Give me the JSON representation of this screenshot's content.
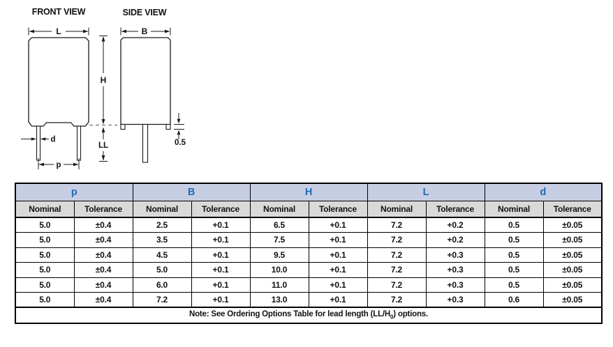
{
  "colors": {
    "group_header_bg": "#c7cee3",
    "sub_header_bg": "#d9d9d9",
    "group_header_text": "#1e6cb5",
    "line_color": "#1a1a1a"
  },
  "drawing": {
    "front_view_title": "FRONT VIEW",
    "side_view_title": "SIDE VIEW",
    "dims": {
      "L": "L",
      "H": "H",
      "LL": "LL",
      "d": "d",
      "p": "p",
      "B": "B",
      "foot_height": "0.5"
    }
  },
  "table": {
    "groups": [
      "p",
      "B",
      "H",
      "L",
      "d"
    ],
    "sub_headers": [
      "Nominal",
      "Tolerance"
    ],
    "rows": [
      [
        "5.0",
        "±0.4",
        "2.5",
        "+0.1",
        "6.5",
        "+0.1",
        "7.2",
        "+0.2",
        "0.5",
        "±0.05"
      ],
      [
        "5.0",
        "±0.4",
        "3.5",
        "+0.1",
        "7.5",
        "+0.1",
        "7.2",
        "+0.2",
        "0.5",
        "±0.05"
      ],
      [
        "5.0",
        "±0.4",
        "4.5",
        "+0.1",
        "9.5",
        "+0.1",
        "7.2",
        "+0.3",
        "0.5",
        "±0.05"
      ],
      [
        "5.0",
        "±0.4",
        "5.0",
        "+0.1",
        "10.0",
        "+0.1",
        "7.2",
        "+0.3",
        "0.5",
        "±0.05"
      ],
      [
        "5.0",
        "±0.4",
        "6.0",
        "+0.1",
        "11.0",
        "+0.1",
        "7.2",
        "+0.3",
        "0.5",
        "±0.05"
      ],
      [
        "5.0",
        "±0.4",
        "7.2",
        "+0.1",
        "13.0",
        "+0.1",
        "7.2",
        "+0.3",
        "0.6",
        "±0.05"
      ]
    ],
    "note": {
      "prefix": "Note: See Ordering Options Table for lead length (LL/H",
      "sub": "0",
      "suffix": ") options."
    }
  }
}
